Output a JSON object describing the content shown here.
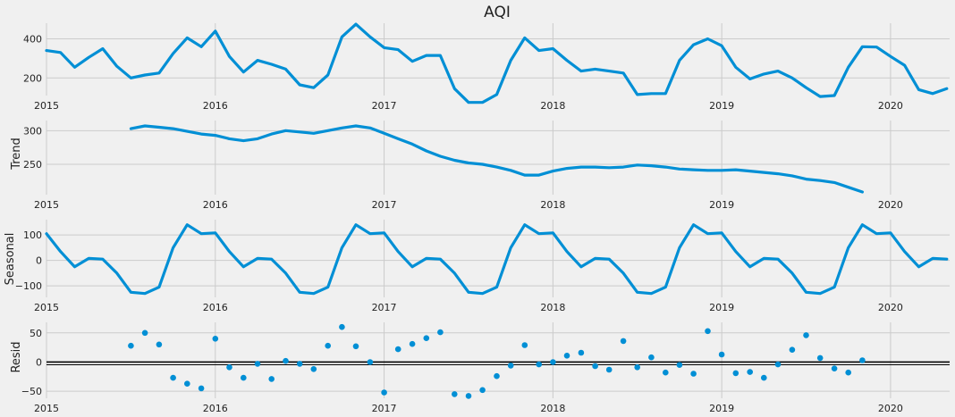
{
  "colors": {
    "series": "#008fd5",
    "grid": "#cbcbcb",
    "background": "#f0f0f0",
    "zero_line": "#000000"
  },
  "chart_data": [
    {
      "type": "line",
      "title": "AQI",
      "ylabel": "",
      "xlim": [
        2015.0,
        2020.35
      ],
      "ylim": [
        110,
        480
      ],
      "yticks": [
        200,
        400
      ],
      "xticks": [
        2015,
        2016,
        2017,
        2018,
        2019,
        2020
      ],
      "xtick_labels": [
        "2015",
        "2016",
        "2017",
        "2018",
        "2019",
        "2020"
      ],
      "grid": true,
      "x": [
        2015.0,
        2015.083,
        2015.167,
        2015.25,
        2015.333,
        2015.417,
        2015.5,
        2015.583,
        2015.667,
        2015.75,
        2015.833,
        2015.917,
        2016.0,
        2016.083,
        2016.167,
        2016.25,
        2016.333,
        2016.417,
        2016.5,
        2016.583,
        2016.667,
        2016.75,
        2016.833,
        2016.917,
        2017.0,
        2017.083,
        2017.167,
        2017.25,
        2017.333,
        2017.417,
        2017.5,
        2017.583,
        2017.667,
        2017.75,
        2017.833,
        2017.917,
        2018.0,
        2018.083,
        2018.167,
        2018.25,
        2018.333,
        2018.417,
        2018.5,
        2018.583,
        2018.667,
        2018.75,
        2018.833,
        2018.917,
        2019.0,
        2019.083,
        2019.167,
        2019.25,
        2019.333,
        2019.417,
        2019.5,
        2019.583,
        2019.667,
        2019.75,
        2019.833,
        2019.917,
        2020.0,
        2020.083,
        2020.167,
        2020.25,
        2020.333
      ],
      "y": [
        340,
        330,
        255,
        305,
        350,
        260,
        200,
        215,
        225,
        325,
        405,
        360,
        440,
        310,
        230,
        290,
        270,
        245,
        165,
        150,
        215,
        410,
        475,
        410,
        355,
        345,
        285,
        315,
        315,
        145,
        75,
        75,
        115,
        290,
        405,
        340,
        350,
        290,
        235,
        245,
        235,
        225,
        115,
        120,
        120,
        290,
        370,
        400,
        365,
        255,
        195,
        220,
        235,
        200,
        150,
        105,
        110,
        255,
        360,
        358,
        310,
        265,
        140,
        120,
        145
      ]
    },
    {
      "type": "line",
      "title": "",
      "ylabel": "Trend",
      "xlim": [
        2015.0,
        2020.35
      ],
      "ylim": [
        205,
        315
      ],
      "yticks": [
        250,
        300
      ],
      "xticks": [
        2015,
        2016,
        2017,
        2018,
        2019,
        2020
      ],
      "xtick_labels": [
        "2015",
        "2016",
        "2017",
        "2018",
        "2019",
        "2020"
      ],
      "grid": true,
      "x": [
        2015.5,
        2015.583,
        2015.667,
        2015.75,
        2015.833,
        2015.917,
        2016.0,
        2016.083,
        2016.167,
        2016.25,
        2016.333,
        2016.417,
        2016.5,
        2016.583,
        2016.667,
        2016.75,
        2016.833,
        2016.917,
        2017.0,
        2017.083,
        2017.167,
        2017.25,
        2017.333,
        2017.417,
        2017.5,
        2017.583,
        2017.667,
        2017.75,
        2017.833,
        2017.917,
        2018.0,
        2018.083,
        2018.167,
        2018.25,
        2018.333,
        2018.417,
        2018.5,
        2018.583,
        2018.667,
        2018.75,
        2018.833,
        2018.917,
        2019.0,
        2019.083,
        2019.167,
        2019.25,
        2019.333,
        2019.417,
        2019.5,
        2019.583,
        2019.667,
        2019.75,
        2019.833
      ],
      "y": [
        303,
        307,
        305,
        303,
        299,
        295,
        293,
        288,
        285,
        288,
        295,
        300,
        298,
        296,
        300,
        304,
        307,
        304,
        296,
        288,
        280,
        270,
        262,
        256,
        252,
        250,
        246,
        241,
        234,
        234,
        240,
        244,
        246,
        246,
        245,
        246,
        249,
        248,
        246,
        243,
        242,
        241,
        241,
        242,
        240,
        238,
        236,
        233,
        228,
        226,
        223,
        216,
        209
      ]
    },
    {
      "type": "line",
      "title": "",
      "ylabel": "Seasonal",
      "xlim": [
        2015.0,
        2020.35
      ],
      "ylim": [
        -145,
        160
      ],
      "yticks": [
        -100,
        0,
        100
      ],
      "ytick_labels": [
        "−100",
        "0",
        "100"
      ],
      "xticks": [
        2015,
        2016,
        2017,
        2018,
        2019,
        2020
      ],
      "xtick_labels": [
        "2015",
        "2016",
        "2017",
        "2018",
        "2019",
        "2020"
      ],
      "grid": true,
      "x": [
        2015.0,
        2015.083,
        2015.167,
        2015.25,
        2015.333,
        2015.417,
        2015.5,
        2015.583,
        2015.667,
        2015.75,
        2015.833,
        2015.917,
        2016.0,
        2016.083,
        2016.167,
        2016.25,
        2016.333,
        2016.417,
        2016.5,
        2016.583,
        2016.667,
        2016.75,
        2016.833,
        2016.917,
        2017.0,
        2017.083,
        2017.167,
        2017.25,
        2017.333,
        2017.417,
        2017.5,
        2017.583,
        2017.667,
        2017.75,
        2017.833,
        2017.917,
        2018.0,
        2018.083,
        2018.167,
        2018.25,
        2018.333,
        2018.417,
        2018.5,
        2018.583,
        2018.667,
        2018.75,
        2018.833,
        2018.917,
        2019.0,
        2019.083,
        2019.167,
        2019.25,
        2019.333,
        2019.417,
        2019.5,
        2019.583,
        2019.667,
        2019.75,
        2019.833,
        2019.917,
        2020.0,
        2020.083,
        2020.167,
        2020.25,
        2020.333
      ],
      "y": [
        105,
        35,
        -25,
        8,
        5,
        -50,
        -125,
        -130,
        -105,
        50,
        140,
        105,
        108,
        35,
        -25,
        8,
        5,
        -50,
        -125,
        -130,
        -105,
        50,
        140,
        105,
        108,
        35,
        -25,
        8,
        5,
        -50,
        -125,
        -130,
        -105,
        50,
        140,
        105,
        108,
        35,
        -25,
        8,
        5,
        -50,
        -125,
        -130,
        -105,
        50,
        140,
        105,
        108,
        35,
        -25,
        8,
        5,
        -50,
        -125,
        -130,
        -105,
        50,
        140,
        105,
        108,
        35,
        -25,
        8,
        5
      ]
    },
    {
      "type": "scatter",
      "title": "",
      "ylabel": "Resid",
      "xlim": [
        2015.0,
        2020.35
      ],
      "ylim": [
        -62,
        68
      ],
      "yticks": [
        -50,
        0,
        50
      ],
      "ytick_labels": [
        "−50",
        "0",
        "50"
      ],
      "xticks": [
        2015,
        2016,
        2017,
        2018,
        2019,
        2020
      ],
      "xtick_labels": [
        "2015",
        "2016",
        "2017",
        "2018",
        "2019",
        "2020"
      ],
      "grid": true,
      "zero_line": true,
      "x": [
        2015.5,
        2015.583,
        2015.667,
        2015.75,
        2015.833,
        2015.917,
        2016.0,
        2016.083,
        2016.167,
        2016.25,
        2016.333,
        2016.417,
        2016.5,
        2016.583,
        2016.667,
        2016.75,
        2016.833,
        2016.917,
        2017.0,
        2017.083,
        2017.167,
        2017.25,
        2017.333,
        2017.417,
        2017.5,
        2017.583,
        2017.667,
        2017.75,
        2017.833,
        2017.917,
        2018.0,
        2018.083,
        2018.167,
        2018.25,
        2018.333,
        2018.417,
        2018.5,
        2018.583,
        2018.667,
        2018.75,
        2018.833,
        2018.917,
        2019.0,
        2019.083,
        2019.167,
        2019.25,
        2019.333,
        2019.417,
        2019.5,
        2019.583,
        2019.667,
        2019.75,
        2019.833
      ],
      "y": [
        28,
        50,
        30,
        -27,
        -37,
        -45,
        40,
        -9,
        -27,
        -3,
        -29,
        2,
        -3,
        -12,
        28,
        60,
        27,
        0,
        -52,
        22,
        31,
        41,
        51,
        -55,
        -58,
        -48,
        -24,
        -6,
        29,
        -4,
        0,
        11,
        16,
        -7,
        -13,
        36,
        -9,
        8,
        -18,
        -5,
        -20,
        53,
        13,
        -19,
        -17,
        -27,
        -4,
        21,
        46,
        7,
        -11,
        -18,
        3
      ]
    }
  ]
}
